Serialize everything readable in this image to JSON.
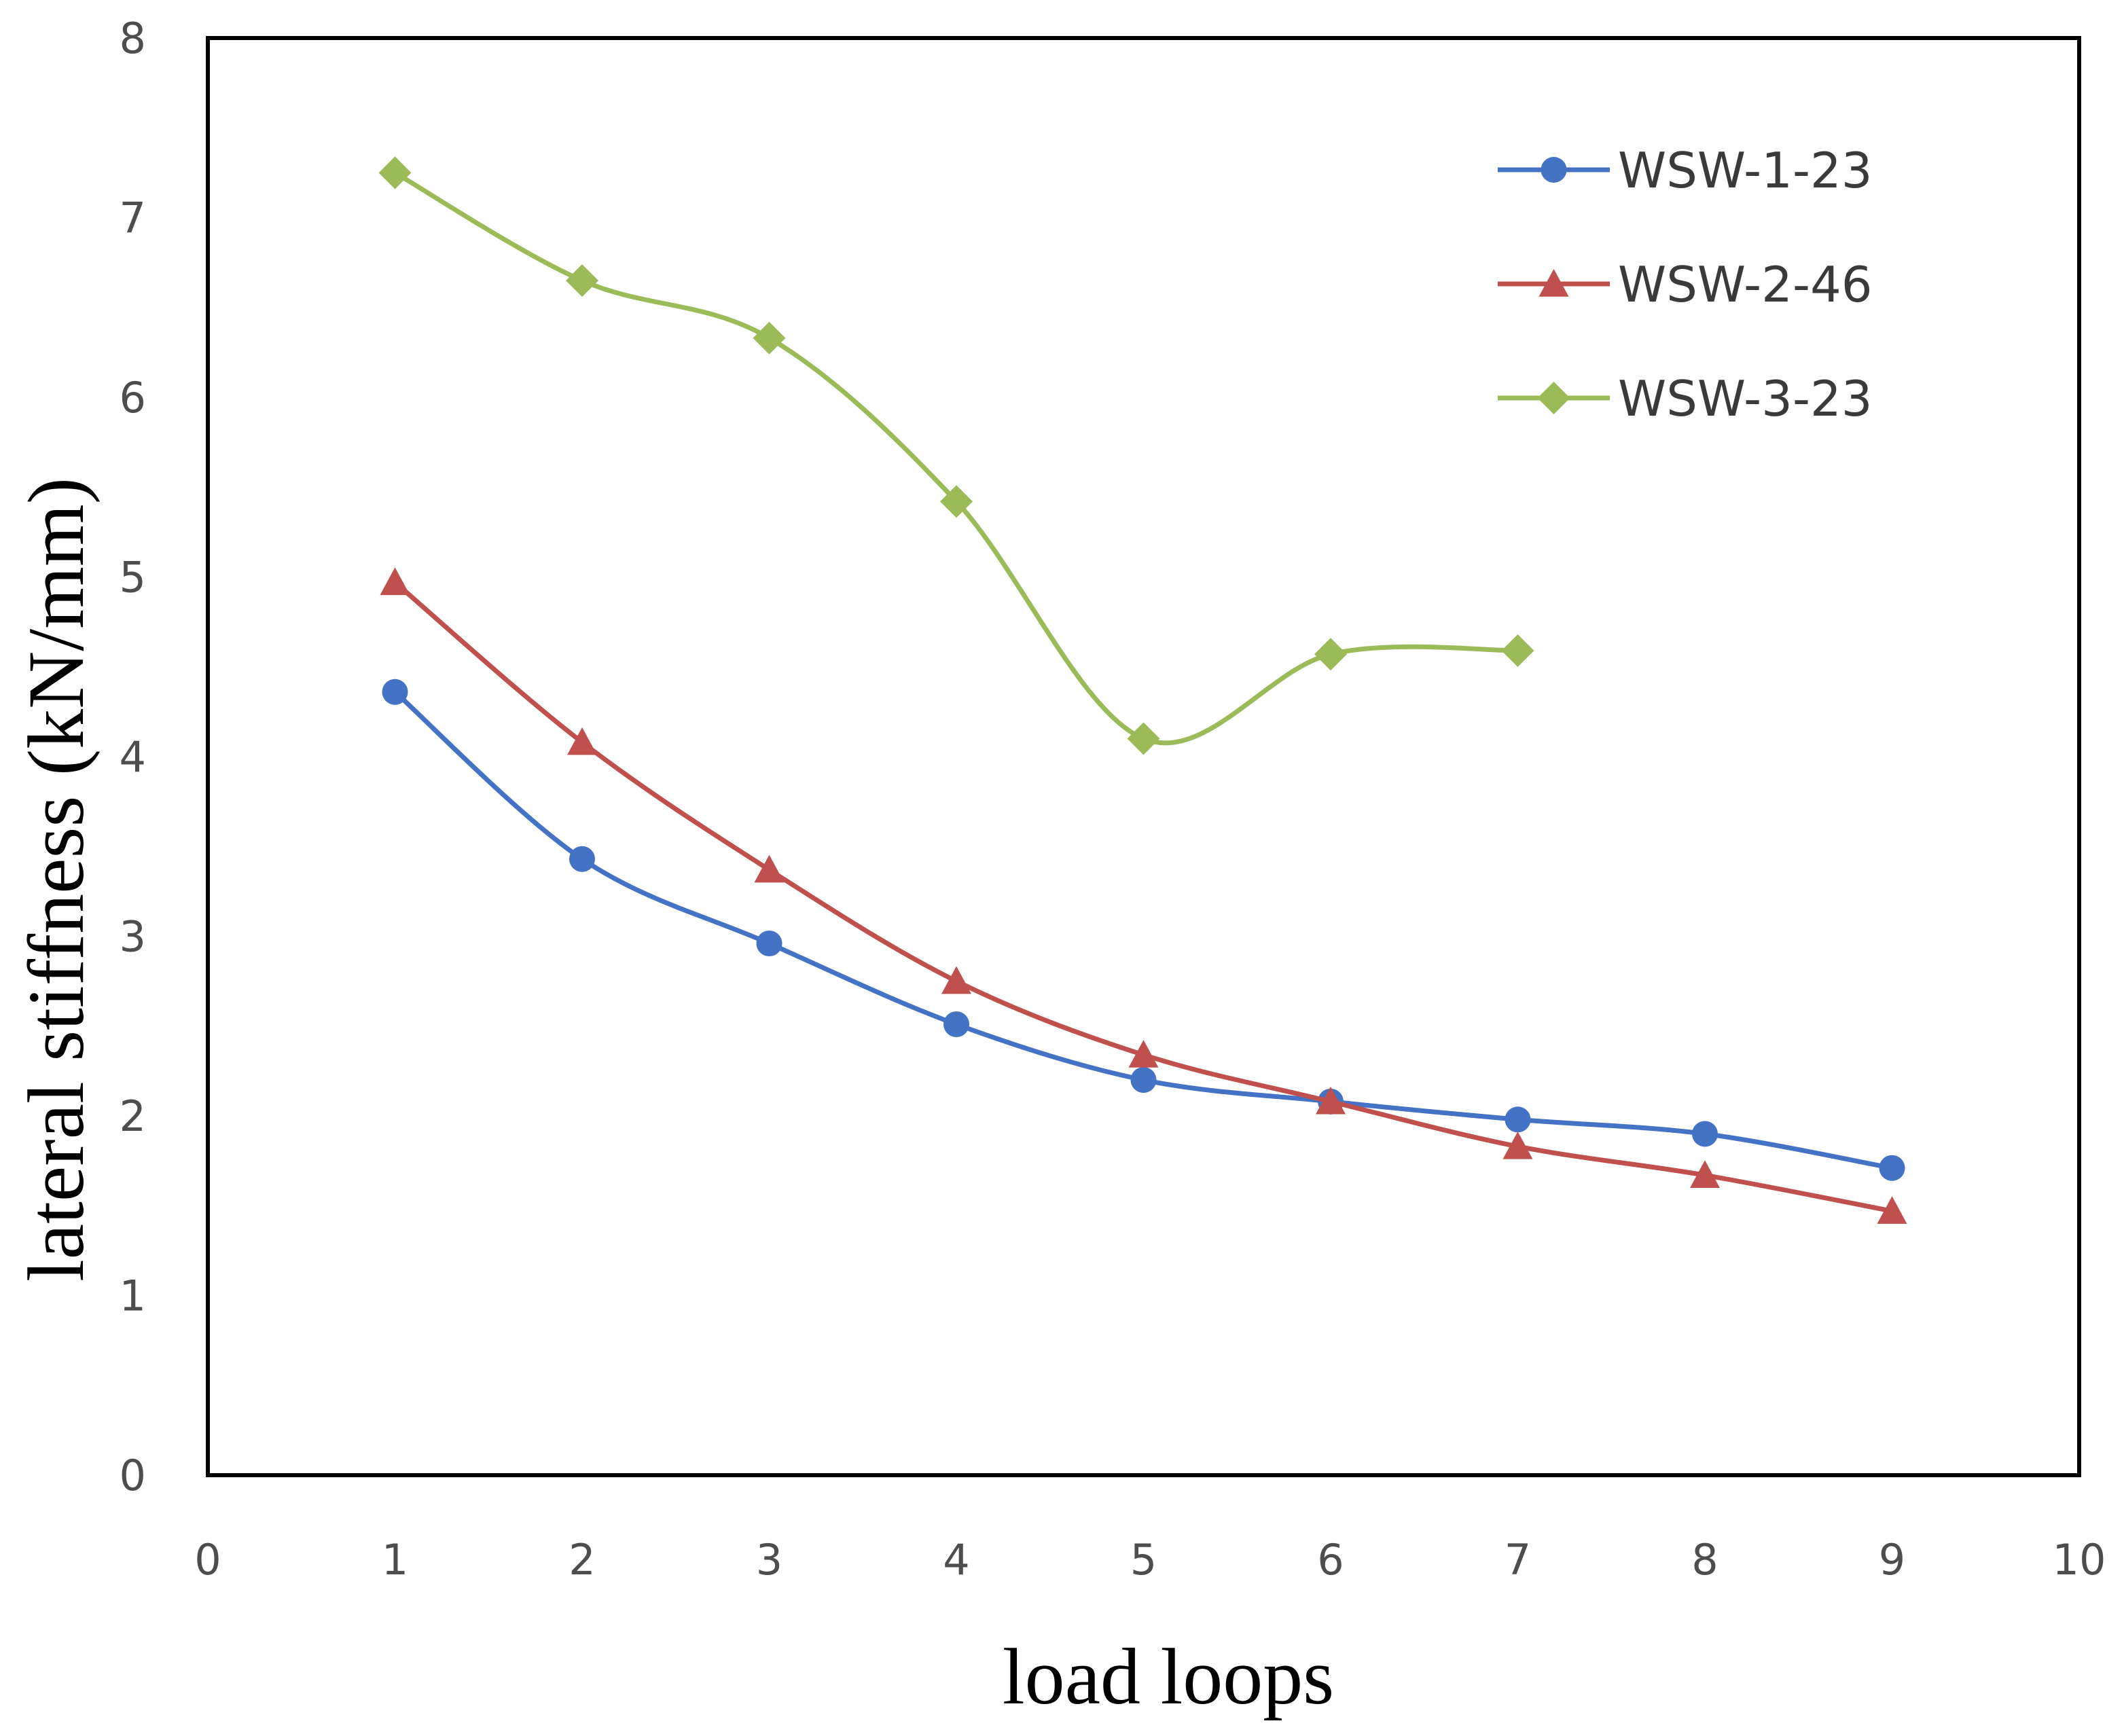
{
  "chart_data": {
    "type": "line",
    "title": "",
    "xlabel": "load loops",
    "ylabel": "lateral stiffness (kN/mm)",
    "xlim": [
      0,
      10
    ],
    "ylim": [
      0,
      8
    ],
    "xticks": [
      0,
      1,
      2,
      3,
      4,
      5,
      6,
      7,
      8,
      9,
      10
    ],
    "yticks": [
      0,
      1,
      2,
      3,
      4,
      5,
      6,
      7,
      8
    ],
    "grid": false,
    "legend_position": "top-right",
    "series": [
      {
        "name": "WSW-1-23",
        "color": "#4472c4",
        "marker": "circle",
        "x": [
          1,
          2,
          3,
          4,
          5,
          6,
          7,
          8,
          9
        ],
        "values": [
          4.36,
          3.43,
          2.96,
          2.51,
          2.2,
          2.08,
          1.98,
          1.9,
          1.71
        ]
      },
      {
        "name": "WSW-2-46",
        "color": "#c0504d",
        "marker": "triangle",
        "x": [
          1,
          2,
          3,
          4,
          5,
          6,
          7,
          8,
          9
        ],
        "values": [
          4.97,
          4.08,
          3.37,
          2.75,
          2.34,
          2.08,
          1.83,
          1.67,
          1.47
        ]
      },
      {
        "name": "WSW-3-23",
        "color": "#9bbb59",
        "marker": "diamond",
        "x": [
          1,
          2,
          3,
          4,
          5,
          6,
          7
        ],
        "values": [
          7.25,
          6.65,
          6.33,
          5.42,
          4.1,
          4.57,
          4.59
        ]
      }
    ]
  }
}
